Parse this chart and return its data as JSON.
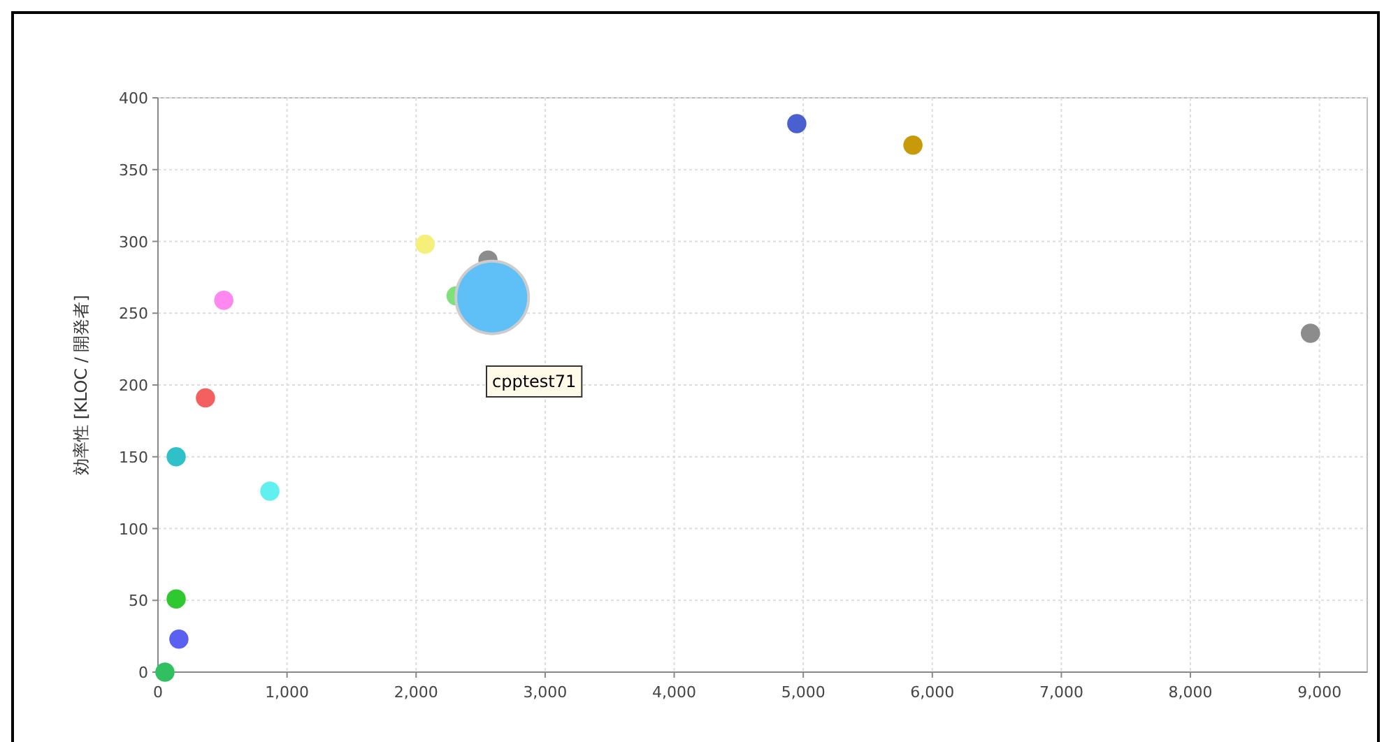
{
  "chart_data": {
    "type": "bubble",
    "ylabel": "効率性 [KLOC / 開発者]",
    "x": [
      4950,
      5850,
      8930,
      2070,
      2557,
      2310,
      2590,
      510,
      368,
      141,
      867,
      141,
      162,
      54
    ],
    "values": [
      382,
      367,
      236,
      298,
      287,
      262,
      261,
      259,
      191,
      150,
      126,
      51,
      23,
      0
    ],
    "sizes": [
      0.07,
      0.07,
      0.07,
      0.07,
      0.07,
      0.07,
      1,
      0.07,
      0.07,
      0.07,
      0.07,
      0.07,
      0.07,
      0.07
    ],
    "colors": [
      "#4a5fd0",
      "#c89a0a",
      "#8c8c8c",
      "#f5f07a",
      "#8c8c8c",
      "#7ee07a",
      "#5fc0f8",
      "#ff88f0",
      "#f46060",
      "#30c0c8",
      "#60f0f0",
      "#30c830",
      "#5a60f0",
      "#30c060"
    ],
    "xlim": [
      0,
      9370
    ],
    "ylim": [
      0,
      400
    ],
    "xticks": [
      0,
      {
        "value": 1000,
        "label": "1,000"
      },
      {
        "value": 2000,
        "label": "2,000"
      },
      {
        "value": 3000,
        "label": "3,000"
      },
      {
        "value": 4000,
        "label": "4,000"
      },
      {
        "value": 5000,
        "label": "5,000"
      },
      {
        "value": 6000,
        "label": "6,000"
      },
      {
        "value": 7000,
        "label": "7,000"
      },
      {
        "value": 8000,
        "label": "8,000"
      },
      {
        "value": 9000,
        "label": "9,000"
      }
    ],
    "yticks": [
      0,
      50,
      100,
      150,
      200,
      250,
      300,
      350,
      400
    ],
    "grid": true,
    "annotations": [
      "cpptest71"
    ]
  }
}
